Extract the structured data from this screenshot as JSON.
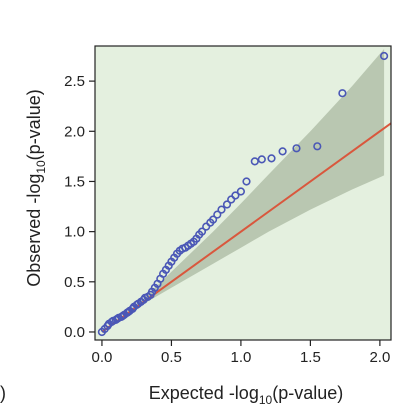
{
  "chart_data": {
    "type": "scatter",
    "title": "",
    "xlabel": {
      "prefix": "Expected -log",
      "sub": "10",
      "suffix": "(p-value)"
    },
    "ylabel": {
      "prefix": "Observed -log",
      "sub": "10",
      "suffix": "(p-value)"
    },
    "panel_fragment": ")",
    "xlim": [
      -0.05,
      2.08
    ],
    "ylim": [
      -0.08,
      2.85
    ],
    "xticks": [
      0.0,
      0.5,
      1.0,
      1.5,
      2.0
    ],
    "xtick_labels": [
      "0.0",
      "0.5",
      "1.0",
      "1.5",
      "2.0"
    ],
    "yticks": [
      0.0,
      0.5,
      1.0,
      1.5,
      2.0,
      2.5
    ],
    "ytick_labels": [
      "0.0",
      "0.5",
      "1.0",
      "1.5",
      "2.0",
      "2.5"
    ],
    "grid": false,
    "colors": {
      "background": "#e4f0df",
      "points": "#4a57b6",
      "reference_line": "#d9573d",
      "confidence_band": "#b6c4ae"
    },
    "reference_line": {
      "from": [
        0,
        0
      ],
      "to": [
        2.08,
        2.08
      ]
    },
    "confidence_band": {
      "x": [
        0.0,
        0.3,
        0.5,
        0.8,
        1.0,
        1.2,
        1.5,
        1.8,
        2.03
      ],
      "lower": [
        0.0,
        0.28,
        0.44,
        0.68,
        0.84,
        1.0,
        1.22,
        1.42,
        1.56
      ],
      "upper": [
        0.0,
        0.33,
        0.6,
        1.0,
        1.28,
        1.57,
        2.0,
        2.45,
        2.82
      ]
    },
    "points": {
      "x": [
        0.0,
        0.02,
        0.04,
        0.05,
        0.07,
        0.08,
        0.1,
        0.11,
        0.12,
        0.14,
        0.15,
        0.16,
        0.18,
        0.19,
        0.2,
        0.22,
        0.23,
        0.25,
        0.26,
        0.28,
        0.3,
        0.31,
        0.33,
        0.35,
        0.36,
        0.38,
        0.4,
        0.42,
        0.44,
        0.46,
        0.48,
        0.5,
        0.52,
        0.54,
        0.56,
        0.58,
        0.6,
        0.62,
        0.64,
        0.66,
        0.68,
        0.7,
        0.72,
        0.75,
        0.78,
        0.8,
        0.83,
        0.86,
        0.9,
        0.93,
        0.96,
        1.0,
        1.04,
        1.1,
        1.15,
        1.22,
        1.3,
        1.4,
        1.55,
        1.73,
        2.03
      ],
      "y": [
        0.0,
        0.03,
        0.06,
        0.08,
        0.1,
        0.11,
        0.12,
        0.13,
        0.14,
        0.15,
        0.16,
        0.17,
        0.19,
        0.2,
        0.21,
        0.23,
        0.25,
        0.27,
        0.28,
        0.3,
        0.32,
        0.34,
        0.35,
        0.37,
        0.4,
        0.44,
        0.48,
        0.53,
        0.58,
        0.62,
        0.66,
        0.7,
        0.74,
        0.78,
        0.81,
        0.83,
        0.84,
        0.86,
        0.88,
        0.9,
        0.93,
        0.97,
        1.0,
        1.05,
        1.09,
        1.12,
        1.17,
        1.22,
        1.27,
        1.32,
        1.36,
        1.4,
        1.5,
        1.7,
        1.72,
        1.73,
        1.8,
        1.83,
        1.85,
        2.38,
        2.75
      ]
    }
  }
}
